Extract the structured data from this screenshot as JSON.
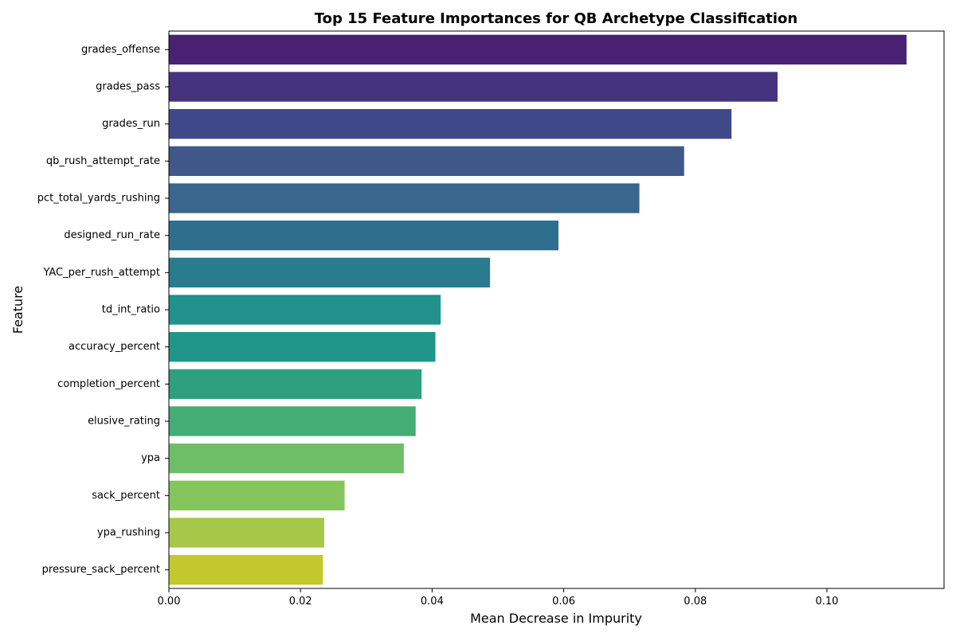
{
  "chart_data": {
    "type": "bar",
    "orientation": "horizontal",
    "title": "Top 15 Feature Importances for QB Archetype Classification",
    "xlabel": "Mean Decrease in Impurity",
    "ylabel": "Feature",
    "xlim": [
      0,
      0.1178
    ],
    "x_ticks": [
      "0.00",
      "0.02",
      "0.04",
      "0.06",
      "0.08",
      "0.10"
    ],
    "grid": false,
    "categories": [
      "grades_offense",
      "grades_pass",
      "grades_run",
      "qb_rush_attempt_rate",
      "pct_total_yards_rushing",
      "designed_run_rate",
      "YAC_per_rush_attempt",
      "td_int_ratio",
      "accuracy_percent",
      "completion_percent",
      "elusive_rating",
      "ypa",
      "sack_percent",
      "ypa_rushing",
      "pressure_sack_percent"
    ],
    "values": [
      0.1121,
      0.0925,
      0.0855,
      0.0783,
      0.0715,
      0.0592,
      0.0488,
      0.0413,
      0.0405,
      0.0384,
      0.0375,
      0.0357,
      0.0267,
      0.0236,
      0.0234
    ],
    "colors": [
      "#482173",
      "#46337f",
      "#3f4889",
      "#3f5889",
      "#38668c",
      "#2e6f8e",
      "#287c8e",
      "#21918c",
      "#20968b",
      "#2fa07f",
      "#44ad75",
      "#6ebe68",
      "#86c55c",
      "#a6c748",
      "#c3c82c"
    ]
  }
}
